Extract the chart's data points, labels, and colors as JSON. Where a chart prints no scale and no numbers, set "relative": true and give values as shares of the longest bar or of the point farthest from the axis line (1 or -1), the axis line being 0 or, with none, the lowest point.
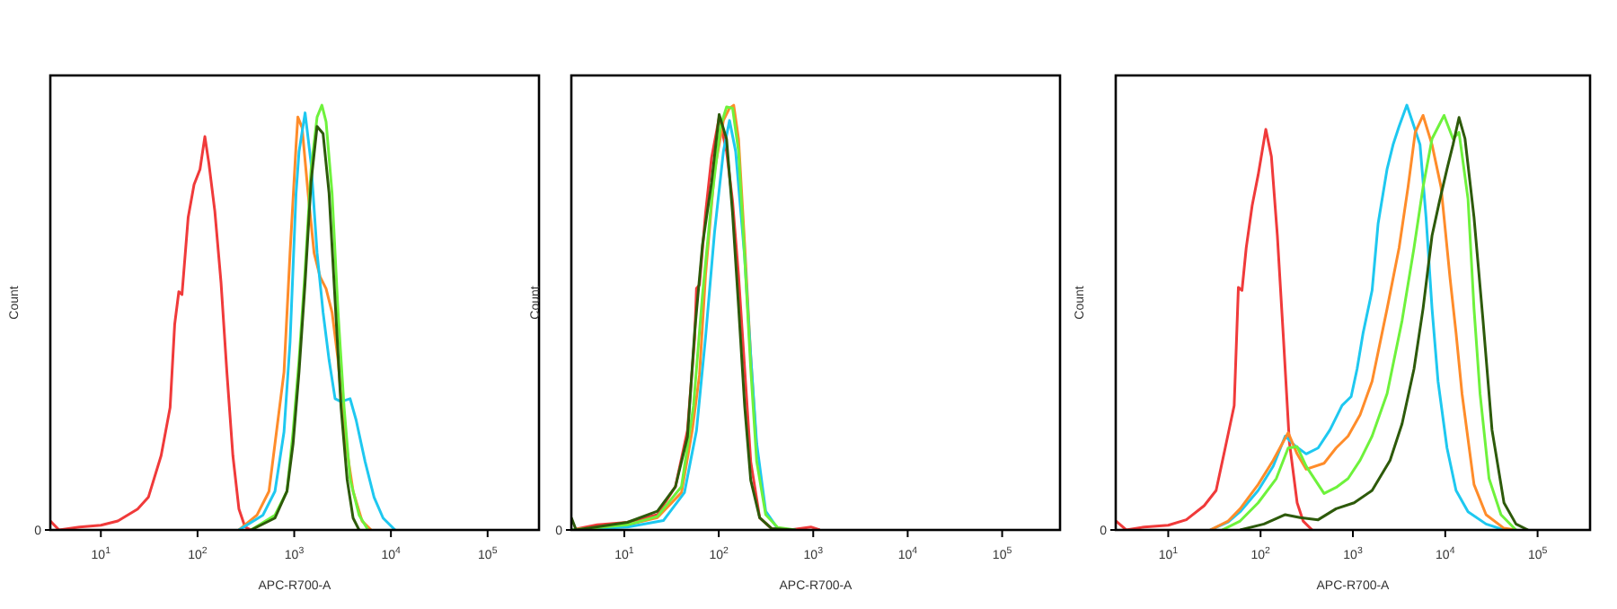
{
  "chart_data": [
    {
      "type": "line",
      "xlabel": "APC-R700-A",
      "ylabel": "Count",
      "log": "x",
      "relative": true,
      "xlim": [
        3,
        340000
      ],
      "xticks": [
        {
          "value": 10,
          "label": "10$^{1}$"
        },
        {
          "value": 100,
          "label": "10$^{2}$"
        },
        {
          "value": 1000,
          "label": "10$^{3}$"
        },
        {
          "value": 10000,
          "label": "10$^{4}$"
        },
        {
          "value": 100000,
          "label": "10$^{5}$"
        }
      ],
      "annotations": [
        "0"
      ],
      "series": [
        {
          "color": "#f03a3a",
          "x": [
            3,
            3.7,
            6,
            10,
            15,
            24,
            31,
            42,
            52,
            58,
            64,
            69,
            80,
            92,
            106,
            119,
            131,
            151,
            175,
            201,
            232,
            268,
            310,
            357
          ],
          "values": [
            0.021,
            0,
            0.007,
            0.011,
            0.021,
            0.049,
            0.077,
            0.175,
            0.288,
            0.484,
            0.561,
            0.554,
            0.736,
            0.813,
            0.849,
            0.926,
            0.863,
            0.75,
            0.582,
            0.372,
            0.175,
            0.049,
            0.007,
            0
          ]
        },
        {
          "color": "#ff8c2a",
          "x": [
            268,
            412,
            548,
            784,
            905,
            1044,
            1090,
            1206,
            1391,
            1604,
            1851,
            2135,
            2463,
            2840,
            3280,
            4063,
            5033,
            6234
          ],
          "values": [
            0,
            0.035,
            0.091,
            0.372,
            0.652,
            0.905,
            0.972,
            0.947,
            0.792,
            0.652,
            0.596,
            0.568,
            0.512,
            0.4,
            0.231,
            0.091,
            0.021,
            0
          ]
        },
        {
          "color": "#1ec8f0",
          "x": [
            268,
            475,
            632,
            784,
            905,
            1044,
            1121,
            1295,
            1494,
            1723,
            1988,
            2293,
            2645,
            3050,
            3783,
            4363,
            5405,
            6695,
            8300,
            11040
          ],
          "values": [
            0,
            0.035,
            0.091,
            0.231,
            0.442,
            0.792,
            0.891,
            0.982,
            0.863,
            0.652,
            0.512,
            0.4,
            0.309,
            0.302,
            0.309,
            0.259,
            0.161,
            0.077,
            0.028,
            0
          ]
        },
        {
          "color": "#6ef23c",
          "x": [
            357,
            632,
            841,
            973,
            1121,
            1295,
            1494,
            1723,
            1933,
            2135,
            2463,
            2840,
            3280,
            3783,
            4686,
            5805
          ],
          "values": [
            0,
            0.035,
            0.091,
            0.231,
            0.4,
            0.61,
            0.849,
            0.972,
            1,
            0.961,
            0.792,
            0.512,
            0.288,
            0.119,
            0.035,
            0
          ]
        },
        {
          "color": "#2d5a0a",
          "x": [
            357,
            632,
            841,
            973,
            1121,
            1295,
            1494,
            1723,
            1988,
            2293,
            2645,
            3050,
            3523,
            4063,
            4686
          ],
          "values": [
            0,
            0.028,
            0.091,
            0.203,
            0.372,
            0.582,
            0.82,
            0.95,
            0.933,
            0.792,
            0.54,
            0.288,
            0.119,
            0.028,
            0
          ]
        }
      ]
    },
    {
      "type": "line",
      "xlabel": "APC-R700-A",
      "ylabel": "Count",
      "log": "x",
      "relative": true,
      "xlim": [
        2.75,
        410000
      ],
      "xticks": [
        {
          "value": 10,
          "label": "10$^{1}$"
        },
        {
          "value": 100,
          "label": "10$^{2}$"
        },
        {
          "value": 1000,
          "label": "10$^{3}$"
        },
        {
          "value": 10000,
          "label": "10$^{4}$"
        },
        {
          "value": 100000,
          "label": "10$^{5}$"
        }
      ],
      "annotations": [
        "0"
      ],
      "series": [
        {
          "color": "#f03a3a",
          "x": [
            2.75,
            5.16,
            10.8,
            22.4,
            34.8,
            46.6,
            55.6,
            58.1,
            62.5,
            72.4,
            83.9,
            101,
            121,
            140,
            162,
            188,
            218,
            271,
            364,
            565,
            944,
            1175
          ],
          "values": [
            0,
            0.012,
            0.018,
            0.036,
            0.102,
            0.234,
            0.453,
            0.569,
            0.577,
            0.745,
            0.876,
            0.971,
            0.891,
            0.774,
            0.599,
            0.38,
            0.161,
            0.029,
            0.003,
            0,
            0.007,
            0
          ]
        },
        {
          "color": "#ff8c2a",
          "x": [
            2.75,
            10.8,
            22.4,
            40.3,
            52.4,
            62.5,
            72.4,
            90.2,
            112,
            130,
            144,
            162,
            188,
            218,
            252
          ],
          "values": [
            0,
            0.012,
            0.029,
            0.088,
            0.234,
            0.365,
            0.599,
            0.847,
            0.964,
            0.993,
            1,
            0.92,
            0.672,
            0.409,
            0.19
          ]
        },
        {
          "color": "#1ec8f0",
          "x": [
            2.75,
            10.8,
            25.9,
            43.3,
            58.1,
            72.4,
            90.2,
            112,
            130,
            151,
            188,
            218,
            252,
            314,
            421,
            654
          ],
          "values": [
            0,
            0.007,
            0.022,
            0.088,
            0.234,
            0.453,
            0.701,
            0.891,
            0.964,
            0.891,
            0.642,
            0.409,
            0.204,
            0.044,
            0.003,
            0
          ]
        },
        {
          "color": "#6ef23c",
          "x": [
            2.75,
            10.8,
            22.4,
            40.3,
            54,
            67.3,
            83.9,
            104,
            121,
            140,
            162,
            188,
            218,
            252,
            314,
            421,
            654
          ],
          "values": [
            0,
            0.012,
            0.032,
            0.102,
            0.292,
            0.555,
            0.774,
            0.949,
            0.996,
            0.993,
            0.891,
            0.642,
            0.38,
            0.161,
            0.036,
            0.006,
            0
          ]
        },
        {
          "color": "#2d5a0a",
          "x": [
            2.75,
            3.09,
            10.8,
            22.4,
            34.8,
            46.6,
            55.6,
            67.3,
            83.9,
            101,
            121,
            140,
            162,
            188,
            218,
            271,
            364,
            654
          ],
          "values": [
            0.029,
            0,
            0.018,
            0.044,
            0.102,
            0.219,
            0.467,
            0.672,
            0.818,
            0.978,
            0.92,
            0.745,
            0.526,
            0.292,
            0.117,
            0.029,
            0.003,
            0
          ]
        }
      ]
    },
    {
      "type": "line",
      "xlabel": "APC-R700-A",
      "ylabel": "Count",
      "log": "x",
      "relative": true,
      "xlim": [
        2.7,
        370000
      ],
      "xticks": [
        {
          "value": 10,
          "label": "10$^{1}$"
        },
        {
          "value": 100,
          "label": "10$^{2}$"
        },
        {
          "value": 1000,
          "label": "10$^{3}$"
        },
        {
          "value": 10000,
          "label": "10$^{4}$"
        },
        {
          "value": 100000,
          "label": "10$^{5}$"
        }
      ],
      "annotations": [
        "0"
      ],
      "series": [
        {
          "color": "#f03a3a",
          "x": [
            2.72,
            3.51,
            5.5,
            10,
            15.7,
            24.5,
            33,
            41.4,
            51.8,
            57.5,
            62.9,
            69.9,
            81.1,
            94.2,
            114,
            131,
            152,
            177,
            205,
            249,
            289,
            362
          ],
          "values": [
            0.021,
            0,
            0.007,
            0.011,
            0.024,
            0.057,
            0.093,
            0.193,
            0.293,
            0.571,
            0.564,
            0.664,
            0.764,
            0.836,
            0.943,
            0.879,
            0.693,
            0.45,
            0.207,
            0.064,
            0.021,
            0
          ]
        },
        {
          "color": "#1ec8f0",
          "x": [
            28.5,
            44.6,
            60.1,
            94.2,
            137,
            185,
            231,
            312,
            420,
            566,
            763,
            957,
            1110,
            1290,
            1614,
            1874,
            2346,
            2723,
            3162,
            3838,
            4588,
            5330,
            6197,
            7194,
            8353,
            10450,
            13090,
            17650,
            27660,
            43260
          ],
          "values": [
            0,
            0.019,
            0.043,
            0.093,
            0.15,
            0.221,
            0.2,
            0.179,
            0.193,
            0.236,
            0.293,
            0.314,
            0.379,
            0.464,
            0.564,
            0.721,
            0.85,
            0.907,
            0.95,
            1,
            0.95,
            0.907,
            0.736,
            0.521,
            0.35,
            0.193,
            0.093,
            0.043,
            0.014,
            0
          ]
        },
        {
          "color": "#ff8c2a",
          "x": [
            28.5,
            44.6,
            60.1,
            94.2,
            137,
            199,
            249,
            312,
            487,
            657,
            887,
            1197,
            1614,
            2346,
            3162,
            3953,
            4729,
            5750,
            7194,
            9010,
            11270,
            13090,
            15190,
            20490,
            27660,
            43260,
            58340
          ],
          "values": [
            0,
            0.021,
            0.05,
            0.107,
            0.164,
            0.229,
            0.179,
            0.143,
            0.157,
            0.193,
            0.221,
            0.271,
            0.35,
            0.521,
            0.664,
            0.807,
            0.936,
            0.976,
            0.907,
            0.807,
            0.593,
            0.464,
            0.321,
            0.107,
            0.036,
            0.004,
            0
          ]
        },
        {
          "color": "#6ef23c",
          "x": [
            38.4,
            60.1,
            94.2,
            148,
            199,
            249,
            312,
            487,
            657,
            887,
            1197,
            1614,
            2346,
            3408,
            4588,
            5750,
            7194,
            9710,
            12130,
            14100,
            17650,
            20490,
            23810,
            29810,
            40150,
            58340
          ],
          "values": [
            0,
            0.021,
            0.064,
            0.121,
            0.193,
            0.196,
            0.15,
            0.086,
            0.1,
            0.121,
            0.164,
            0.221,
            0.321,
            0.493,
            0.664,
            0.807,
            0.921,
            0.976,
            0.921,
            0.936,
            0.779,
            0.521,
            0.321,
            0.121,
            0.036,
            0
          ]
        },
        {
          "color": "#2d5a0a",
          "x": [
            60.1,
            109,
            185,
            268,
            420,
            657,
            1031,
            1614,
            2527,
            3408,
            4588,
            5750,
            7194,
            8608,
            10450,
            12130,
            14100,
            16370,
            20490,
            25660,
            32080,
            43260,
            58340,
            78700
          ],
          "values": [
            0,
            0.014,
            0.036,
            0.029,
            0.024,
            0.05,
            0.064,
            0.093,
            0.164,
            0.25,
            0.379,
            0.521,
            0.693,
            0.771,
            0.85,
            0.907,
            0.971,
            0.921,
            0.736,
            0.493,
            0.236,
            0.064,
            0.014,
            0
          ]
        }
      ]
    }
  ]
}
